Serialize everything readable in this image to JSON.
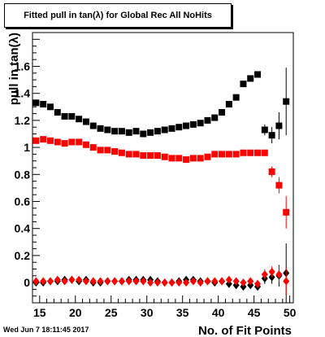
{
  "header": {
    "title": "Fitted pull in tan(λ) for Global Rec All NoHits",
    "date": "Wed Jun  7 18:11:45 2017"
  },
  "chart_data": {
    "type": "scatter",
    "xlabel": "No. of Fit Points",
    "ylabel": "pull in tan(λ)",
    "xlim": [
      14,
      50.5
    ],
    "ylim": [
      -0.15,
      1.85
    ],
    "x_ticks": [
      15,
      20,
      25,
      30,
      35,
      40,
      45,
      50
    ],
    "y_ticks": [
      0,
      0.2,
      0.4,
      0.6,
      0.8,
      1,
      1.2,
      1.4,
      1.6
    ],
    "y_tick_labels": [
      "0",
      "0.2",
      "0.4",
      "0.6",
      "0.8",
      "1",
      "1.2",
      "1.4",
      "1.6"
    ],
    "grid": false,
    "series": [
      {
        "marker": "square",
        "color": "#000000",
        "points": [
          [
            14.5,
            1.33
          ],
          [
            15.5,
            1.32
          ],
          [
            16.5,
            1.3
          ],
          [
            17.5,
            1.26
          ],
          [
            18.5,
            1.23
          ],
          [
            19.5,
            1.23
          ],
          [
            20.5,
            1.21
          ],
          [
            21.5,
            1.19
          ],
          [
            22.5,
            1.16
          ],
          [
            23.5,
            1.14
          ],
          [
            24.5,
            1.13
          ],
          [
            25.5,
            1.12
          ],
          [
            26.5,
            1.12
          ],
          [
            27.5,
            1.11
          ],
          [
            28.5,
            1.12
          ],
          [
            29.5,
            1.1
          ],
          [
            30.5,
            1.11
          ],
          [
            31.5,
            1.12
          ],
          [
            32.5,
            1.13
          ],
          [
            33.5,
            1.14
          ],
          [
            34.5,
            1.15
          ],
          [
            35.5,
            1.16
          ],
          [
            36.5,
            1.17
          ],
          [
            37.5,
            1.18
          ],
          [
            38.5,
            1.2
          ],
          [
            39.5,
            1.22
          ],
          [
            40.5,
            1.26
          ],
          [
            41.5,
            1.32
          ],
          [
            42.5,
            1.37
          ],
          [
            43.5,
            1.47
          ],
          [
            44.5,
            1.51
          ],
          [
            45.5,
            1.54
          ],
          [
            46.5,
            1.13
          ],
          [
            47.5,
            1.09
          ],
          [
            48.5,
            1.16
          ],
          [
            49.5,
            1.34
          ]
        ],
        "errors": [
          0.01,
          0.01,
          0.01,
          0.01,
          0.01,
          0.01,
          0.01,
          0.01,
          0.01,
          0.01,
          0.01,
          0.01,
          0.01,
          0.01,
          0.01,
          0.01,
          0.01,
          0.01,
          0.01,
          0.01,
          0.01,
          0.01,
          0.01,
          0.01,
          0.01,
          0.01,
          0.01,
          0.01,
          0.01,
          0.01,
          0.02,
          0.02,
          0.04,
          0.06,
          0.1,
          0.25
        ]
      },
      {
        "marker": "square",
        "color": "#ff0000",
        "points": [
          [
            14.5,
            1.05
          ],
          [
            15.5,
            1.06
          ],
          [
            16.5,
            1.05
          ],
          [
            17.5,
            1.04
          ],
          [
            18.5,
            1.03
          ],
          [
            19.5,
            1.04
          ],
          [
            20.5,
            1.04
          ],
          [
            21.5,
            1.02
          ],
          [
            22.5,
            1.0
          ],
          [
            23.5,
            0.98
          ],
          [
            24.5,
            0.98
          ],
          [
            25.5,
            0.97
          ],
          [
            26.5,
            0.96
          ],
          [
            27.5,
            0.95
          ],
          [
            28.5,
            0.95
          ],
          [
            29.5,
            0.94
          ],
          [
            30.5,
            0.94
          ],
          [
            31.5,
            0.94
          ],
          [
            32.5,
            0.93
          ],
          [
            33.5,
            0.92
          ],
          [
            34.5,
            0.92
          ],
          [
            35.5,
            0.91
          ],
          [
            36.5,
            0.92
          ],
          [
            37.5,
            0.92
          ],
          [
            38.5,
            0.93
          ],
          [
            39.5,
            0.95
          ],
          [
            40.5,
            0.95
          ],
          [
            41.5,
            0.95
          ],
          [
            42.5,
            0.95
          ],
          [
            43.5,
            0.96
          ],
          [
            44.5,
            0.96
          ],
          [
            45.5,
            0.96
          ],
          [
            46.5,
            0.96
          ],
          [
            47.5,
            0.82
          ],
          [
            48.5,
            0.72
          ],
          [
            49.5,
            0.52
          ]
        ],
        "errors": [
          0.01,
          0.01,
          0.01,
          0.01,
          0.01,
          0.01,
          0.01,
          0.01,
          0.01,
          0.01,
          0.01,
          0.01,
          0.01,
          0.01,
          0.01,
          0.01,
          0.01,
          0.01,
          0.01,
          0.01,
          0.01,
          0.01,
          0.01,
          0.01,
          0.01,
          0.01,
          0.01,
          0.01,
          0.01,
          0.01,
          0.01,
          0.01,
          0.02,
          0.04,
          0.06,
          0.12
        ]
      },
      {
        "marker": "diamond",
        "color": "#000000",
        "points": [
          [
            14.5,
            0.0
          ],
          [
            15.5,
            0.0
          ],
          [
            16.5,
            0.01
          ],
          [
            17.5,
            0.01
          ],
          [
            18.5,
            0.02
          ],
          [
            19.5,
            0.02
          ],
          [
            20.5,
            0.01
          ],
          [
            21.5,
            0.02
          ],
          [
            22.5,
            0.0
          ],
          [
            23.5,
            0.0
          ],
          [
            24.5,
            0.01
          ],
          [
            25.5,
            0.01
          ],
          [
            26.5,
            0.01
          ],
          [
            27.5,
            0.02
          ],
          [
            28.5,
            0.02
          ],
          [
            29.5,
            0.02
          ],
          [
            30.5,
            0.02
          ],
          [
            31.5,
            0.01
          ],
          [
            32.5,
            0.0
          ],
          [
            33.5,
            0.0
          ],
          [
            34.5,
            0.01
          ],
          [
            35.5,
            0.02
          ],
          [
            36.5,
            0.02
          ],
          [
            37.5,
            0.01
          ],
          [
            38.5,
            0.01
          ],
          [
            39.5,
            0.0
          ],
          [
            40.5,
            0.01
          ],
          [
            41.5,
            -0.01
          ],
          [
            42.5,
            -0.02
          ],
          [
            43.5,
            -0.03
          ],
          [
            44.5,
            -0.02
          ],
          [
            45.5,
            -0.03
          ],
          [
            46.5,
            0.03
          ],
          [
            47.5,
            0.04
          ],
          [
            48.5,
            0.05
          ],
          [
            49.5,
            0.07
          ]
        ],
        "errors": [
          0.01,
          0.01,
          0.01,
          0.01,
          0.01,
          0.01,
          0.01,
          0.01,
          0.01,
          0.01,
          0.01,
          0.01,
          0.01,
          0.01,
          0.01,
          0.01,
          0.01,
          0.01,
          0.01,
          0.01,
          0.01,
          0.01,
          0.01,
          0.01,
          0.01,
          0.01,
          0.01,
          0.01,
          0.01,
          0.02,
          0.02,
          0.03,
          0.04,
          0.05,
          0.08,
          0.22
        ]
      },
      {
        "marker": "diamond",
        "color": "#ff0000",
        "points": [
          [
            14.5,
            0.01
          ],
          [
            15.5,
            0.01
          ],
          [
            16.5,
            0.01
          ],
          [
            17.5,
            0.02
          ],
          [
            18.5,
            0.01
          ],
          [
            19.5,
            0.02
          ],
          [
            20.5,
            0.02
          ],
          [
            21.5,
            0.01
          ],
          [
            22.5,
            0.01
          ],
          [
            23.5,
            0.01
          ],
          [
            24.5,
            0.01
          ],
          [
            25.5,
            0.01
          ],
          [
            26.5,
            0.01
          ],
          [
            27.5,
            0.01
          ],
          [
            28.5,
            0.01
          ],
          [
            29.5,
            0.01
          ],
          [
            30.5,
            0.0
          ],
          [
            31.5,
            0.0
          ],
          [
            32.5,
            0.0
          ],
          [
            33.5,
            0.0
          ],
          [
            34.5,
            0.0
          ],
          [
            35.5,
            0.0
          ],
          [
            36.5,
            0.01
          ],
          [
            37.5,
            0.0
          ],
          [
            38.5,
            0.01
          ],
          [
            39.5,
            0.01
          ],
          [
            40.5,
            0.01
          ],
          [
            41.5,
            0.02
          ],
          [
            42.5,
            0.01
          ],
          [
            43.5,
            0.0
          ],
          [
            44.5,
            0.01
          ],
          [
            45.5,
            -0.01
          ],
          [
            46.5,
            0.06
          ],
          [
            47.5,
            0.08
          ],
          [
            48.5,
            0.06
          ],
          [
            49.5,
            0.01
          ]
        ],
        "errors": [
          0.01,
          0.01,
          0.01,
          0.01,
          0.01,
          0.01,
          0.01,
          0.01,
          0.01,
          0.01,
          0.01,
          0.01,
          0.01,
          0.01,
          0.01,
          0.01,
          0.01,
          0.01,
          0.01,
          0.01,
          0.01,
          0.01,
          0.01,
          0.01,
          0.01,
          0.01,
          0.01,
          0.01,
          0.01,
          0.02,
          0.02,
          0.03,
          0.04,
          0.04,
          0.06,
          0.1
        ]
      }
    ]
  }
}
